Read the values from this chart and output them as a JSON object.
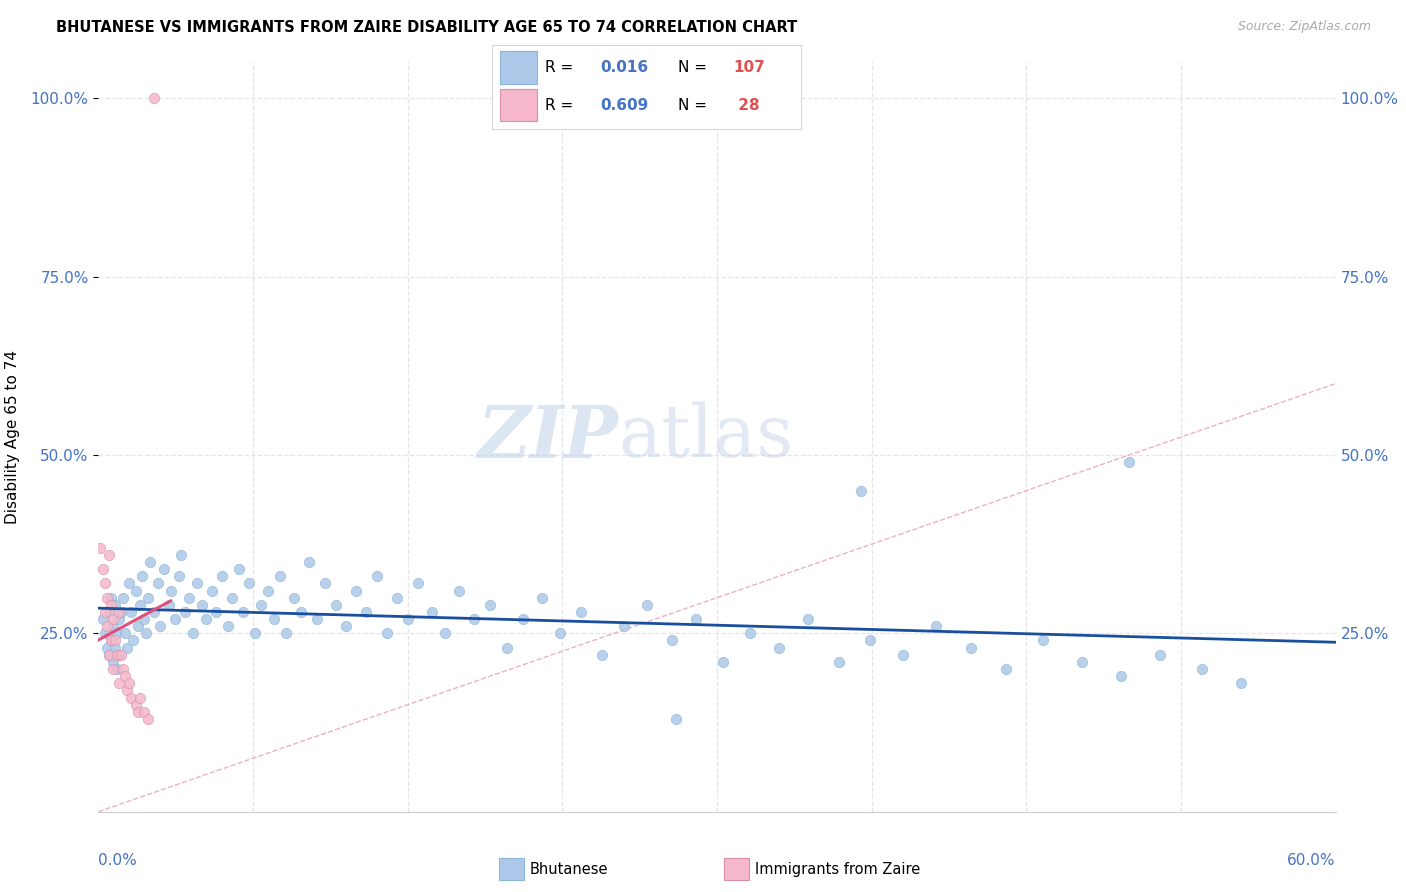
{
  "title": "BHUTANESE VS IMMIGRANTS FROM ZAIRE DISABILITY AGE 65 TO 74 CORRELATION CHART",
  "source": "Source: ZipAtlas.com",
  "ylabel": "Disability Age 65 to 74",
  "xlim": [
    0.0,
    0.6
  ],
  "ylim": [
    0.0,
    1.05
  ],
  "yticks": [
    0.25,
    0.5,
    0.75,
    1.0
  ],
  "ytick_labels": [
    "25.0%",
    "50.0%",
    "75.0%",
    "100.0%"
  ],
  "color_blue_scatter": "#adc8e8",
  "color_pink_scatter": "#f5b8ca",
  "color_blue_line": "#1a4fa0",
  "color_pink_line": "#e0507a",
  "color_diag": "#f0b0c0",
  "color_axis_label": "#4472c4",
  "color_grid": "#e5e5e5",
  "R_blue": 0.016,
  "N_blue": 107,
  "R_pink": 0.609,
  "N_pink": 28,
  "watermark_zip": "ZIP",
  "watermark_atlas": "atlas",
  "legend_label_blue": "Bhutanese",
  "legend_label_pink": "Immigrants from Zaire",
  "bhutanese_x": [
    0.002,
    0.003,
    0.004,
    0.005,
    0.005,
    0.006,
    0.006,
    0.007,
    0.007,
    0.008,
    0.008,
    0.009,
    0.009,
    0.01,
    0.01,
    0.011,
    0.012,
    0.013,
    0.014,
    0.015,
    0.016,
    0.017,
    0.018,
    0.019,
    0.02,
    0.021,
    0.022,
    0.023,
    0.024,
    0.025,
    0.027,
    0.029,
    0.03,
    0.032,
    0.034,
    0.035,
    0.037,
    0.039,
    0.04,
    0.042,
    0.044,
    0.046,
    0.048,
    0.05,
    0.052,
    0.055,
    0.057,
    0.06,
    0.063,
    0.065,
    0.068,
    0.07,
    0.073,
    0.076,
    0.079,
    0.082,
    0.085,
    0.088,
    0.091,
    0.095,
    0.098,
    0.102,
    0.106,
    0.11,
    0.115,
    0.12,
    0.125,
    0.13,
    0.135,
    0.14,
    0.145,
    0.15,
    0.155,
    0.162,
    0.168,
    0.175,
    0.182,
    0.19,
    0.198,
    0.206,
    0.215,
    0.224,
    0.234,
    0.244,
    0.255,
    0.266,
    0.278,
    0.29,
    0.303,
    0.316,
    0.33,
    0.344,
    0.359,
    0.374,
    0.39,
    0.406,
    0.423,
    0.44,
    0.458,
    0.477,
    0.496,
    0.515,
    0.535,
    0.554,
    0.5,
    0.37,
    0.28
  ],
  "bhutanese_y": [
    0.27,
    0.25,
    0.23,
    0.28,
    0.22,
    0.3,
    0.24,
    0.26,
    0.21,
    0.29,
    0.23,
    0.25,
    0.2,
    0.27,
    0.22,
    0.28,
    0.3,
    0.25,
    0.23,
    0.32,
    0.28,
    0.24,
    0.31,
    0.26,
    0.29,
    0.33,
    0.27,
    0.25,
    0.3,
    0.35,
    0.28,
    0.32,
    0.26,
    0.34,
    0.29,
    0.31,
    0.27,
    0.33,
    0.36,
    0.28,
    0.3,
    0.25,
    0.32,
    0.29,
    0.27,
    0.31,
    0.28,
    0.33,
    0.26,
    0.3,
    0.34,
    0.28,
    0.32,
    0.25,
    0.29,
    0.31,
    0.27,
    0.33,
    0.25,
    0.3,
    0.28,
    0.35,
    0.27,
    0.32,
    0.29,
    0.26,
    0.31,
    0.28,
    0.33,
    0.25,
    0.3,
    0.27,
    0.32,
    0.28,
    0.25,
    0.31,
    0.27,
    0.29,
    0.23,
    0.27,
    0.3,
    0.25,
    0.28,
    0.22,
    0.26,
    0.29,
    0.24,
    0.27,
    0.21,
    0.25,
    0.23,
    0.27,
    0.21,
    0.24,
    0.22,
    0.26,
    0.23,
    0.2,
    0.24,
    0.21,
    0.19,
    0.22,
    0.2,
    0.18,
    0.49,
    0.45,
    0.13
  ],
  "zaire_x": [
    0.001,
    0.002,
    0.003,
    0.003,
    0.004,
    0.004,
    0.005,
    0.005,
    0.006,
    0.006,
    0.007,
    0.007,
    0.008,
    0.009,
    0.01,
    0.01,
    0.011,
    0.012,
    0.013,
    0.014,
    0.015,
    0.016,
    0.018,
    0.019,
    0.02,
    0.022,
    0.024,
    0.027
  ],
  "zaire_y": [
    0.37,
    0.34,
    0.32,
    0.28,
    0.3,
    0.26,
    0.36,
    0.22,
    0.29,
    0.24,
    0.27,
    0.2,
    0.24,
    0.22,
    0.28,
    0.18,
    0.22,
    0.2,
    0.19,
    0.17,
    0.18,
    0.16,
    0.15,
    0.14,
    0.16,
    0.14,
    0.13,
    1.0
  ]
}
